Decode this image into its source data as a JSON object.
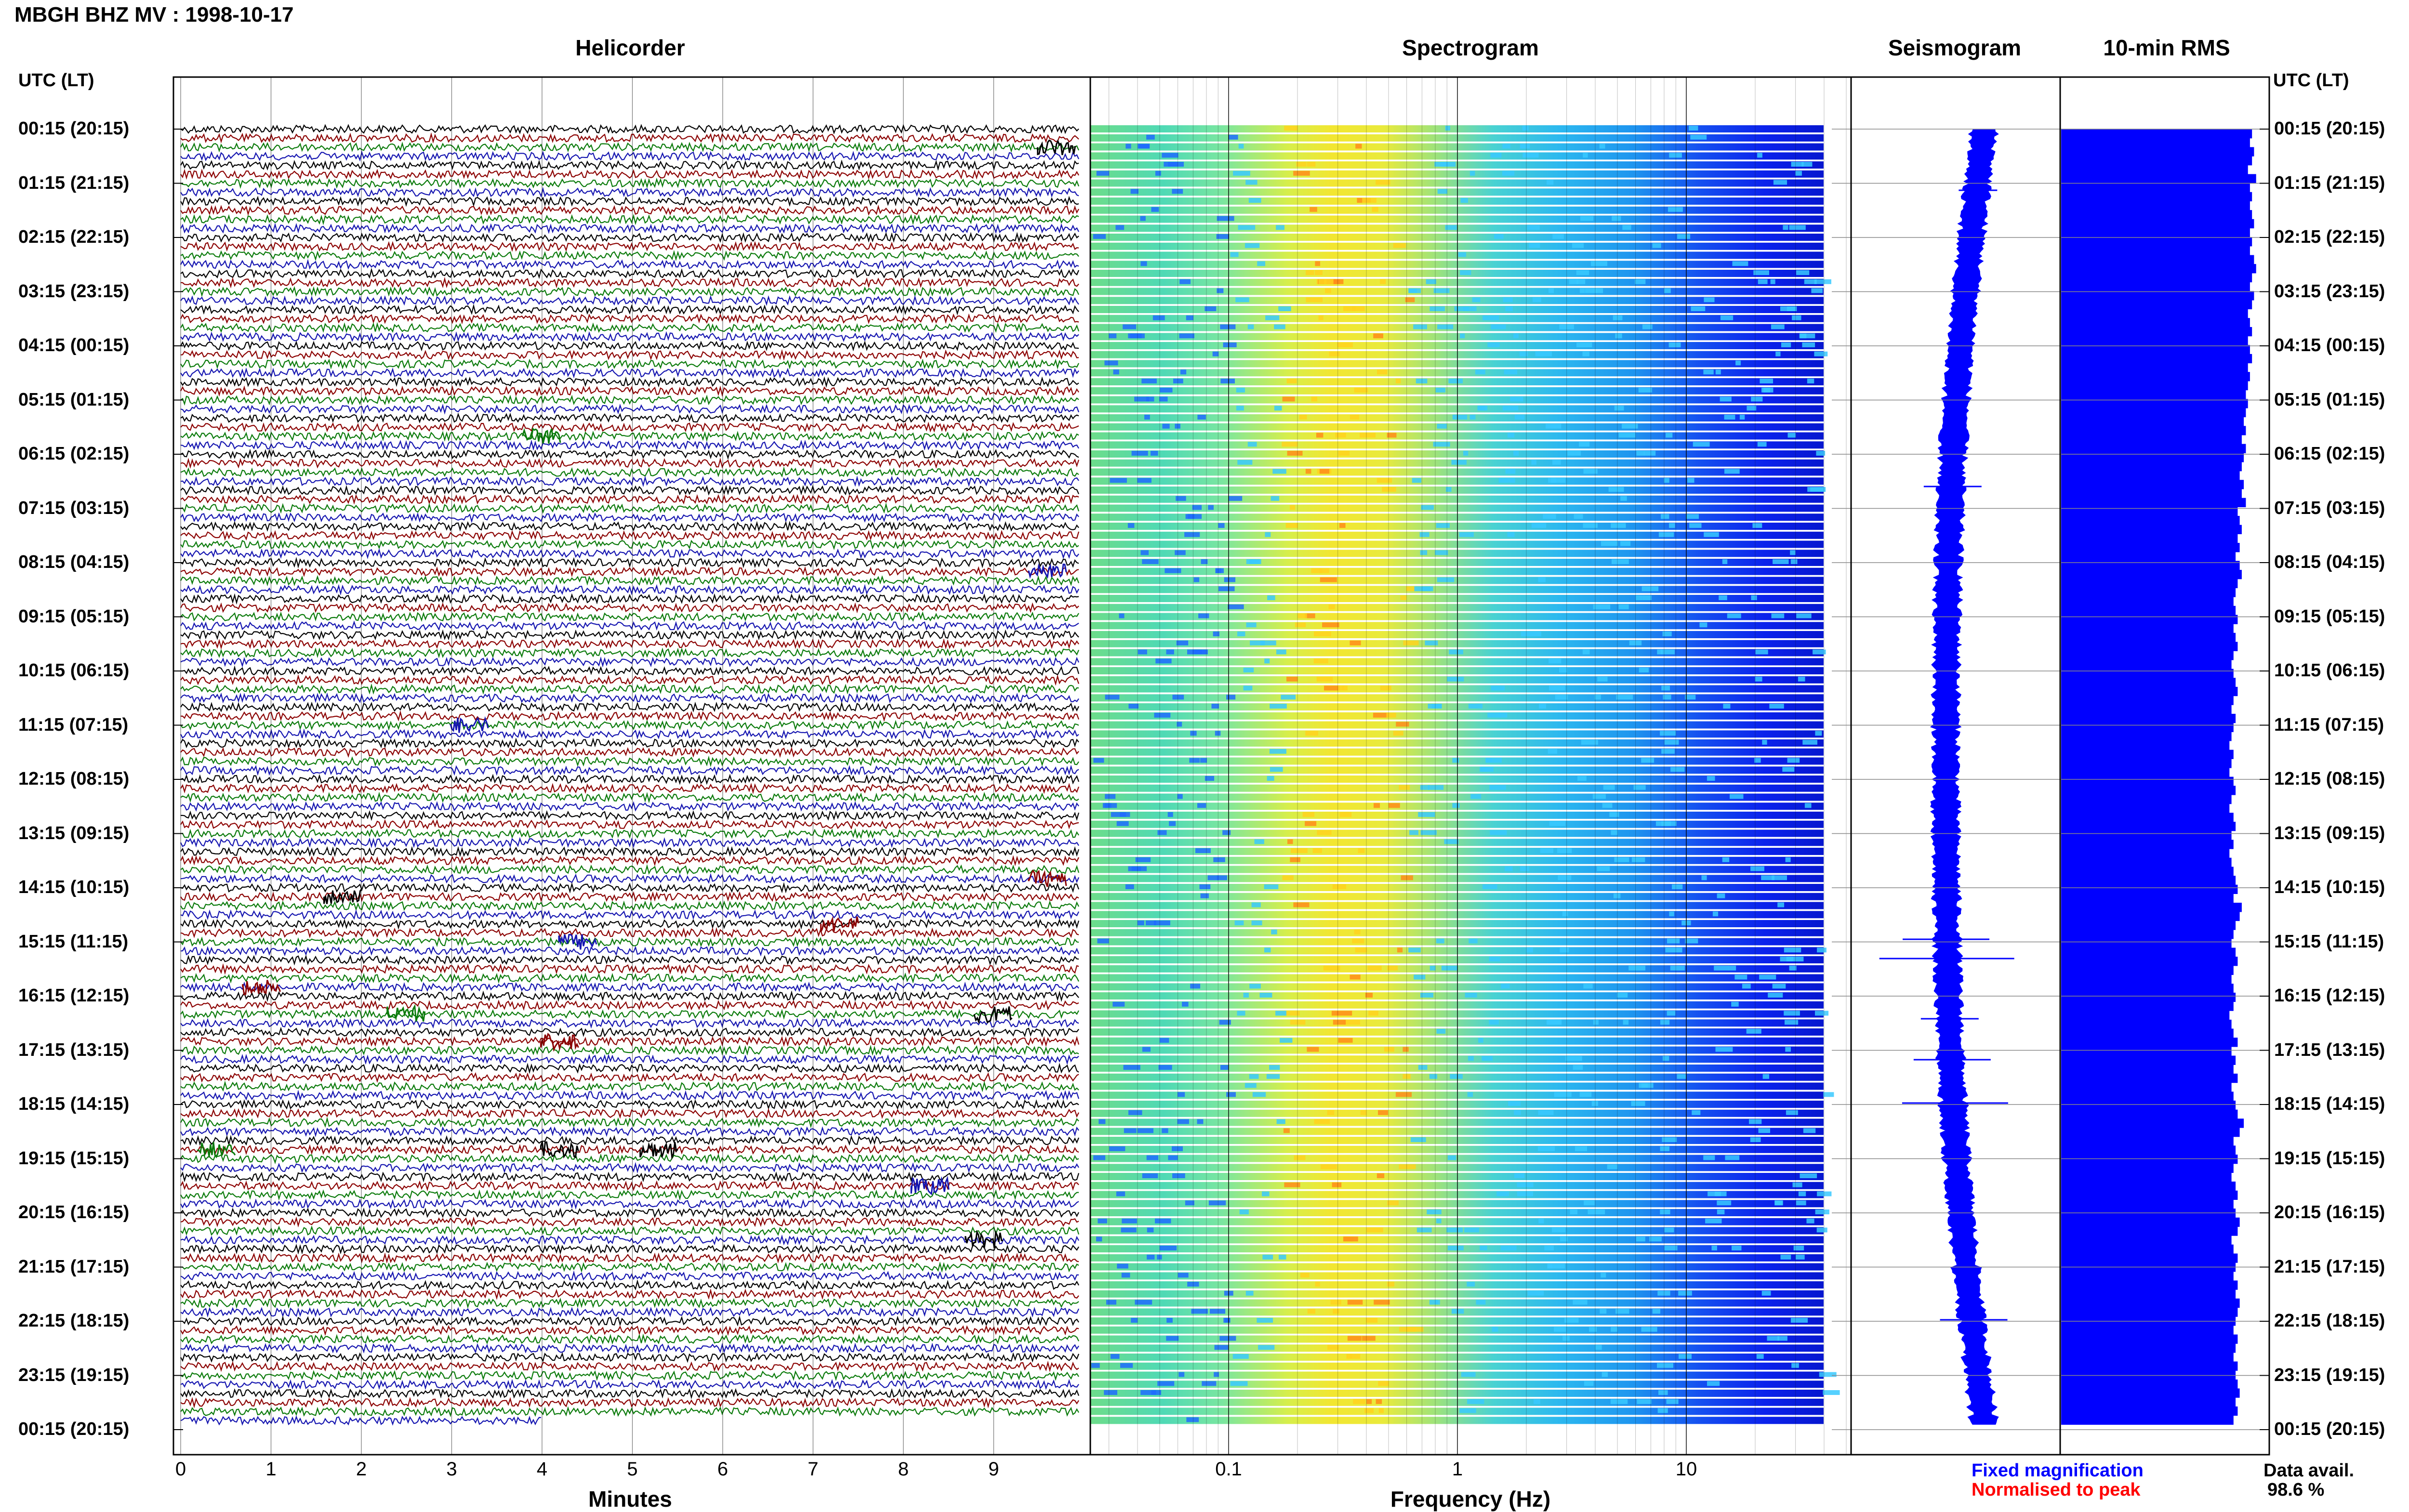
{
  "station_title": "MBGH BHZ MV : 1998-10-17",
  "panels": {
    "helicorder": "Helicorder",
    "spectrogram": "Spectrogram",
    "seismogram": "Seismogram",
    "rms": "10-min RMS"
  },
  "time_axis": {
    "left_header": "UTC (LT)",
    "right_header": "UTC (LT)",
    "labels": [
      "00:15 (20:15)",
      "01:15 (21:15)",
      "02:15 (22:15)",
      "03:15 (23:15)",
      "04:15 (00:15)",
      "05:15 (01:15)",
      "06:15 (02:15)",
      "07:15 (03:15)",
      "08:15 (04:15)",
      "09:15 (05:15)",
      "10:15 (06:15)",
      "11:15 (07:15)",
      "12:15 (08:15)",
      "13:15 (09:15)",
      "14:15 (10:15)",
      "15:15 (11:15)",
      "16:15 (12:15)",
      "17:15 (13:15)",
      "18:15 (14:15)",
      "19:15 (15:15)",
      "20:15 (16:15)",
      "21:15 (17:15)",
      "22:15 (18:15)",
      "23:15 (19:15)",
      "00:15 (20:15)"
    ]
  },
  "x_axes": {
    "minutes_label": "Minutes",
    "minutes_ticks": [
      "0",
      "1",
      "2",
      "3",
      "4",
      "5",
      "6",
      "7",
      "8",
      "9"
    ],
    "frequency_label": "Frequency (Hz)",
    "frequency_ticks": [
      "0.1",
      "1",
      "10"
    ]
  },
  "legend": {
    "fixed": "Fixed magnification",
    "normalised": "Normalised to peak",
    "data_avail_label": "Data avail.",
    "data_avail_value": "98.6 %"
  },
  "colors": {
    "trace_cycle": [
      "#000000",
      "#8b0000",
      "#0a7a0a",
      "#1515b0"
    ],
    "seismogram": "#0000ff",
    "rms": "#0000ff",
    "legend_fixed": "#0000ff",
    "legend_normalised": "#ff0000",
    "spectrogram_scale": [
      "#0000ff",
      "#00ccff",
      "#ffff00",
      "#ff0000"
    ]
  },
  "chart_data": [
    {
      "type": "line",
      "panel": "Helicorder",
      "xlabel": "Minutes",
      "xlim": [
        0,
        10
      ],
      "row_count": 144,
      "row_minutes": 10,
      "note_coverage": "last row ends at about 4 minutes"
    },
    {
      "type": "heatmap",
      "panel": "Spectrogram",
      "xlabel": "Frequency (Hz)",
      "xscale": "log",
      "xlim": [
        0.02,
        40
      ],
      "energy_peak_hz": [
        0.2,
        0.5
      ]
    },
    {
      "type": "line",
      "panel": "Seismogram"
    },
    {
      "type": "bar",
      "panel": "10-min RMS",
      "relative_values": [
        0.93,
        0.92,
        0.94,
        0.93,
        0.91,
        0.95,
        0.92,
        0.93,
        0.92,
        0.93,
        0.94,
        0.92,
        0.93,
        0.92,
        0.94,
        0.95,
        0.93,
        0.92,
        0.94,
        0.93,
        0.91,
        0.92,
        0.93,
        0.91,
        0.92,
        0.93,
        0.91,
        0.92,
        0.91,
        0.9,
        0.91,
        0.9,
        0.89,
        0.9,
        0.88,
        0.9,
        0.89,
        0.88,
        0.87,
        0.89,
        0.88,
        0.9,
        0.86,
        0.87,
        0.88,
        0.86,
        0.87,
        0.85,
        0.87,
        0.88,
        0.86,
        0.85,
        0.84,
        0.85,
        0.86,
        0.84,
        0.85,
        0.86,
        0.84,
        0.83,
        0.84,
        0.85,
        0.86,
        0.84,
        0.83,
        0.85,
        0.84,
        0.83,
        0.82,
        0.84,
        0.83,
        0.82,
        0.84,
        0.85,
        0.83,
        0.82,
        0.84,
        0.85,
        0.83,
        0.84,
        0.82,
        0.83,
        0.84,
        0.85,
        0.86,
        0.84,
        0.88,
        0.87,
        0.85,
        0.84,
        0.83,
        0.85,
        0.86,
        0.84,
        0.83,
        0.84,
        0.85,
        0.84,
        0.82,
        0.83,
        0.84,
        0.86,
        0.83,
        0.85,
        0.84,
        0.86,
        0.83,
        0.84,
        0.85,
        0.86,
        0.89,
        0.87,
        0.84,
        0.85,
        0.86,
        0.84,
        0.83,
        0.85,
        0.86,
        0.84,
        0.85,
        0.87,
        0.86,
        0.83,
        0.84,
        0.86,
        0.85,
        0.84,
        0.86,
        0.85,
        0.87,
        0.86,
        0.85,
        0.84,
        0.86,
        0.85,
        0.84,
        0.86,
        0.85,
        0.86,
        0.87,
        0.85,
        0.86,
        0.84
      ]
    }
  ]
}
